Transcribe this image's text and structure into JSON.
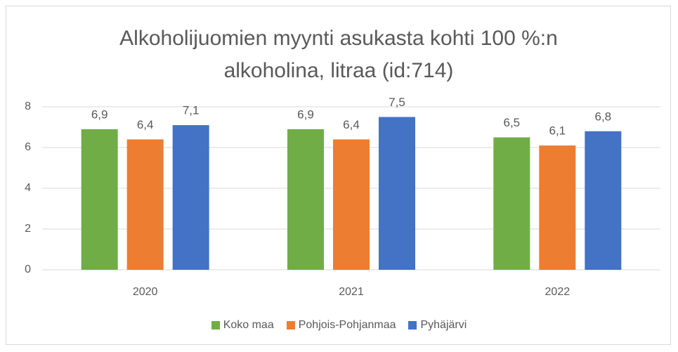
{
  "chart_data": {
    "type": "bar",
    "title": "Alkoholijuomien myynti asukasta kohti 100 %:n alkoholina, litraa (id:714)",
    "categories": [
      "2020",
      "2021",
      "2022"
    ],
    "series": [
      {
        "name": "Koko maa",
        "color": "#70ad47",
        "values": [
          6.9,
          6.9,
          6.5
        ],
        "value_labels": [
          "6,9",
          "6,9",
          "6,5"
        ]
      },
      {
        "name": "Pohjois-Pohjanmaa",
        "color": "#ed7d31",
        "values": [
          6.4,
          6.4,
          6.1
        ],
        "value_labels": [
          "6,4",
          "6,4",
          "6,1"
        ]
      },
      {
        "name": "Pyhäjärvi",
        "color": "#4472c4",
        "values": [
          7.1,
          7.5,
          6.8
        ],
        "value_labels": [
          "7,1",
          "7,5",
          "6,8"
        ]
      }
    ],
    "ylim": [
      0,
      8
    ],
    "yticks": [
      0,
      2,
      4,
      6,
      8
    ],
    "grid": true,
    "legend": "bottom"
  }
}
